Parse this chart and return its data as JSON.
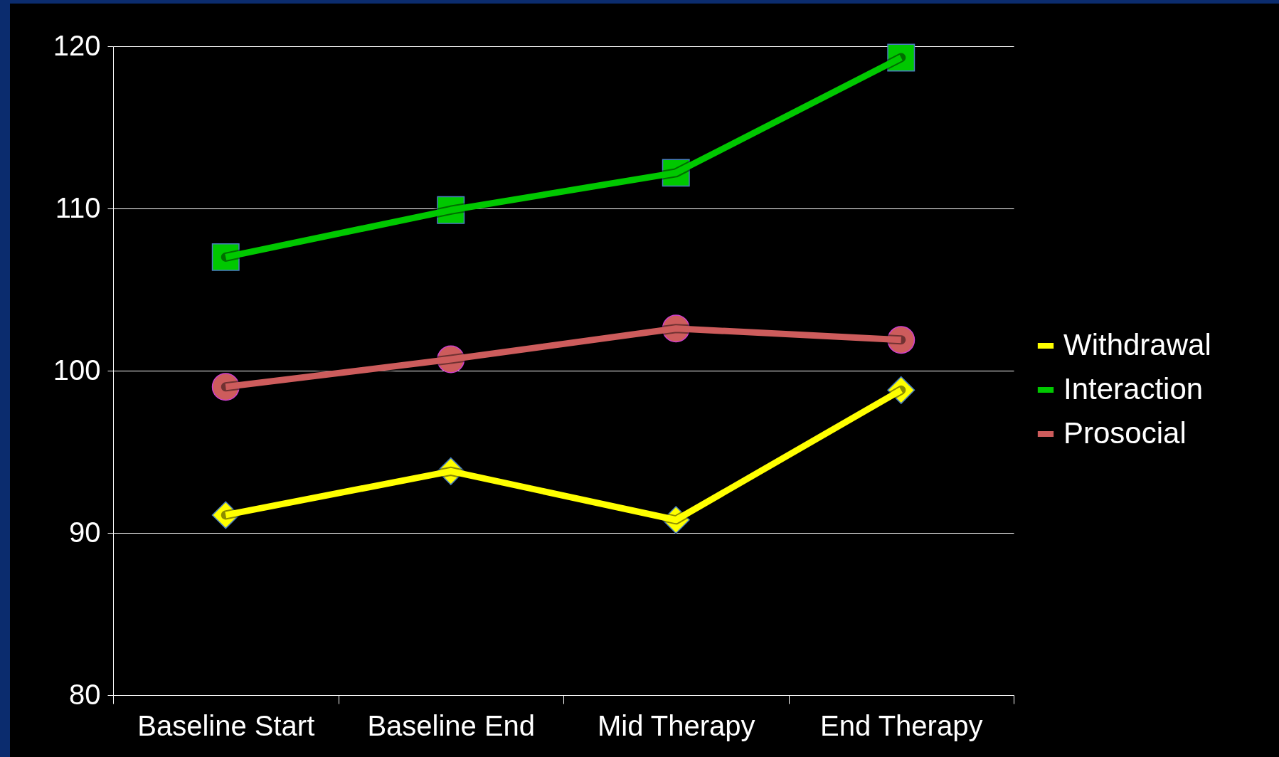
{
  "chart_data": {
    "type": "line",
    "categories": [
      "Baseline Start",
      "Baseline End",
      "Mid Therapy",
      "End Therapy"
    ],
    "series": [
      {
        "name": "Withdrawal",
        "color": "#ffff00",
        "marker": "diamond",
        "values": [
          91.1,
          93.8,
          90.8,
          98.8
        ]
      },
      {
        "name": "Interaction",
        "color": "#00c800",
        "marker": "square",
        "values": [
          107.0,
          109.9,
          112.2,
          119.3
        ]
      },
      {
        "name": "Prosocial",
        "color": "#cd5c5c",
        "marker": "circle",
        "values": [
          99.0,
          100.7,
          102.6,
          101.9
        ]
      }
    ],
    "ylim": [
      80,
      120
    ],
    "yticks": [
      80,
      90,
      100,
      110,
      120
    ],
    "grid": "y",
    "legend": "right",
    "line_style": "solid"
  }
}
